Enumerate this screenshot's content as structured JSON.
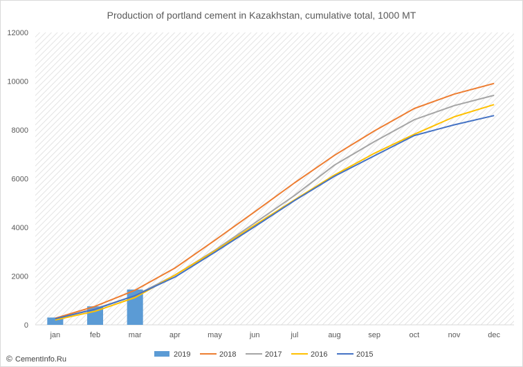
{
  "chart_data": {
    "type": "line",
    "title": "Production of portland cement in Kazakhstan, cumulative total, 1000 MT",
    "xlabel": "",
    "ylabel": "",
    "categories": [
      "jan",
      "feb",
      "mar",
      "apr",
      "may",
      "jun",
      "jul",
      "aug",
      "sep",
      "oct",
      "nov",
      "dec"
    ],
    "ylim": [
      0,
      12000
    ],
    "yticks": [
      0,
      2000,
      4000,
      6000,
      8000,
      10000,
      12000
    ],
    "grid": "hatched plot area",
    "legend_position": "bottom",
    "bars": {
      "name": "2019",
      "color": "#5b9bd5",
      "values": [
        300,
        760,
        1450
      ]
    },
    "series": [
      {
        "name": "2018",
        "color": "#ed7d31",
        "values": [
          270,
          760,
          1420,
          2330,
          3470,
          4640,
          5830,
          6960,
          7960,
          8880,
          9470,
          9910
        ]
      },
      {
        "name": "2017",
        "color": "#a5a5a5",
        "values": [
          240,
          660,
          1200,
          2040,
          3060,
          4180,
          5310,
          6560,
          7520,
          8420,
          9000,
          9420
        ]
      },
      {
        "name": "2016",
        "color": "#ffc000",
        "values": [
          200,
          560,
          1120,
          2040,
          3030,
          4090,
          5130,
          6150,
          7040,
          7820,
          8540,
          9040
        ]
      },
      {
        "name": "2015",
        "color": "#4472c4",
        "values": [
          250,
          640,
          1200,
          1960,
          2980,
          4030,
          5100,
          6100,
          6940,
          7770,
          8210,
          8590
        ]
      }
    ]
  },
  "watermark": {
    "icon": "copyright-symbol",
    "text": "CementInfo.Ru"
  }
}
